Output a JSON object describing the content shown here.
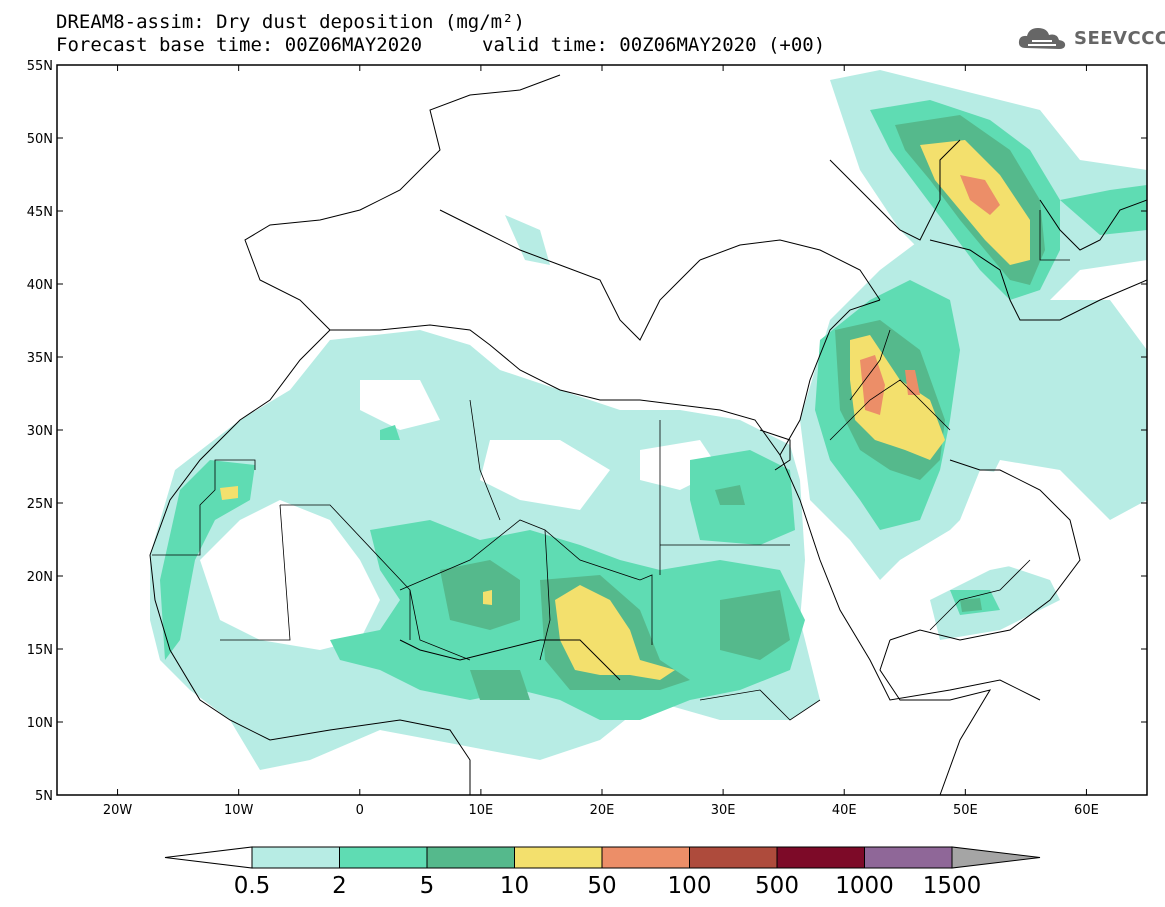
{
  "title": {
    "line1": "DREAM8-assim: Dry dust deposition (mg/m²)",
    "line2a": "Forecast base time: 00Z06MAY2020",
    "line2b": "valid time: 00Z06MAY2020 (+00)"
  },
  "logo": {
    "text": "SEEVCCC",
    "icon": "cloud-logo-icon"
  },
  "map": {
    "lon_range": [
      -25,
      65
    ],
    "lat_range": [
      5,
      55
    ],
    "lat_labels": [
      "55N",
      "50N",
      "45N",
      "40N",
      "35N",
      "30N",
      "25N",
      "20N",
      "15N",
      "10N",
      "5N"
    ],
    "lon_labels": [
      "20W",
      "10W",
      "0",
      "10E",
      "20E",
      "30E",
      "40E",
      "50E",
      "60E"
    ]
  },
  "colorbar": {
    "levels": [
      "0.5",
      "2",
      "5",
      "10",
      "50",
      "100",
      "500",
      "1000",
      "1500"
    ],
    "colors": [
      "#ffffff",
      "#b7ece4",
      "#5fdcb3",
      "#55b98c",
      "#f3e06d",
      "#ec8e68",
      "#ae4b3c",
      "#7d0a28",
      "#8f6798",
      "#a5a5a5"
    ]
  }
}
